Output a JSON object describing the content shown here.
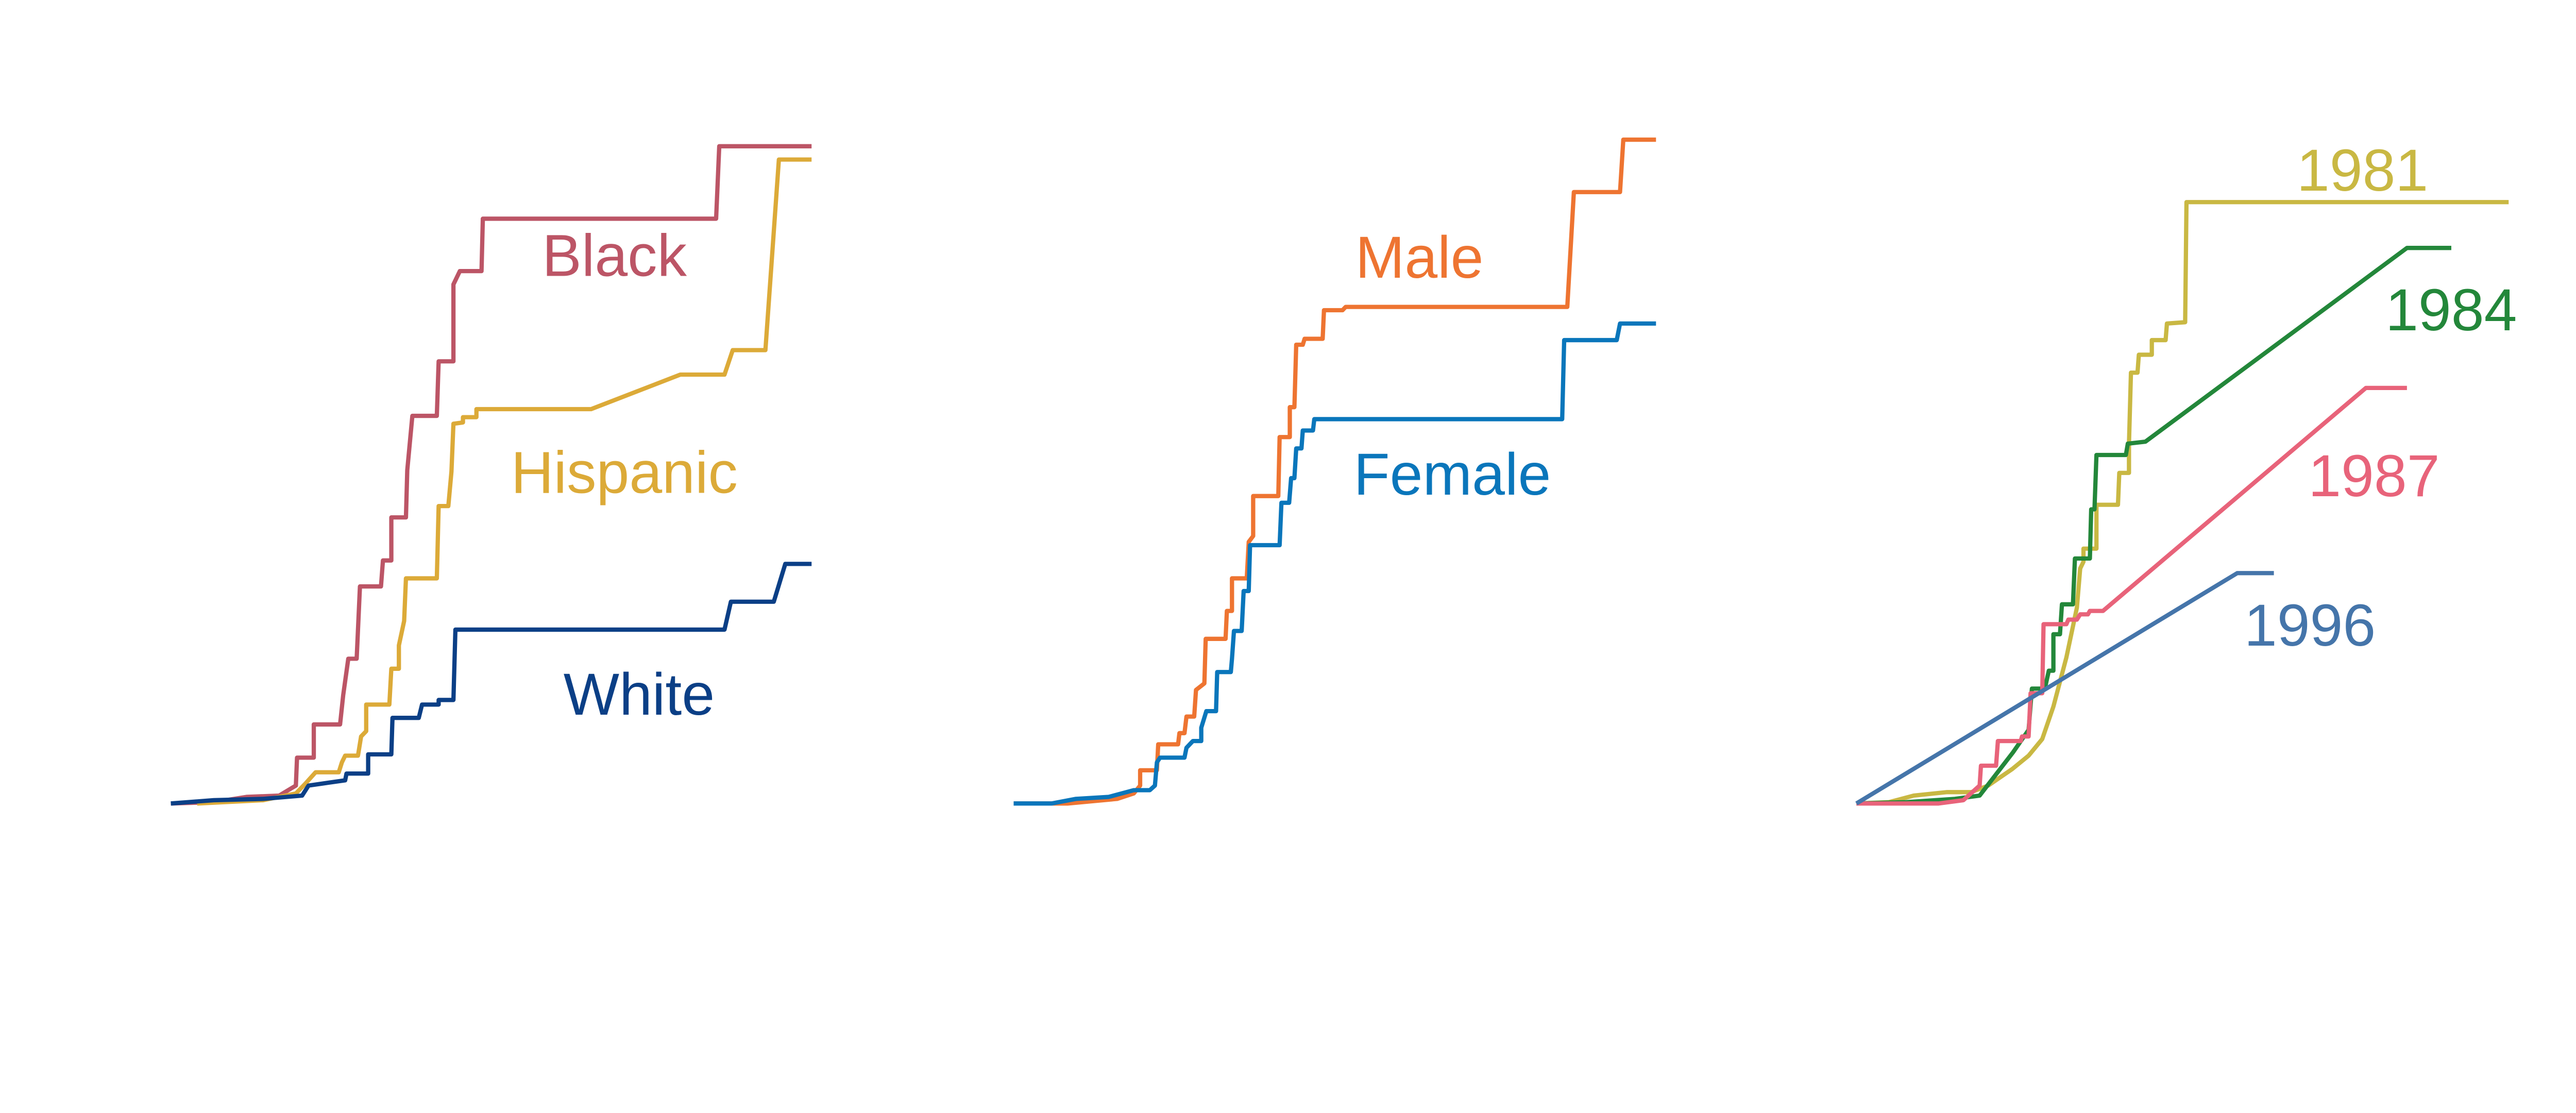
{
  "chart_data": [
    {
      "type": "line",
      "step": true,
      "title": "",
      "xlabel": "",
      "ylabel": "",
      "xlim": [
        0,
        100
      ],
      "ylim": [
        0,
        100
      ],
      "grid": false,
      "legend": "inline labels",
      "series": [
        {
          "name": "Black",
          "color": "#bc5566",
          "points": [
            [
              0,
              0
            ],
            [
              6.7,
              0.2
            ],
            [
              11.8,
              1.0
            ],
            [
              16.9,
              1.2
            ],
            [
              19.5,
              2.7
            ],
            [
              19.7,
              6.9
            ],
            [
              22.3,
              6.9
            ],
            [
              22.3,
              11.9
            ],
            [
              26.4,
              11.9
            ],
            [
              26.9,
              16.3
            ],
            [
              27.7,
              21.8
            ],
            [
              29.0,
              21.8
            ],
            [
              29.5,
              32.7
            ],
            [
              32.8,
              32.7
            ],
            [
              33.1,
              36.6
            ],
            [
              34.4,
              36.6
            ],
            [
              34.4,
              43.1
            ],
            [
              36.7,
              43.1
            ],
            [
              36.9,
              50.2
            ],
            [
              37.7,
              58.4
            ],
            [
              41.5,
              58.4
            ],
            [
              41.8,
              66.6
            ],
            [
              44.1,
              66.6
            ],
            [
              44.1,
              78.2
            ],
            [
              45.1,
              80.2
            ],
            [
              48.5,
              80.2
            ],
            [
              48.7,
              88.1
            ],
            [
              85.1,
              88.1
            ],
            [
              85.6,
              99.0
            ],
            [
              100,
              99.0
            ]
          ]
        },
        {
          "name": "Hispanic",
          "color": "#dcaa38",
          "points": [
            [
              4.1,
              0
            ],
            [
              14.4,
              0.5
            ],
            [
              19.5,
              1.5
            ],
            [
              21.0,
              3.0
            ],
            [
              22.6,
              4.7
            ],
            [
              26.2,
              4.7
            ],
            [
              26.7,
              6.2
            ],
            [
              27.2,
              7.2
            ],
            [
              29.2,
              7.2
            ],
            [
              29.7,
              10.1
            ],
            [
              30.5,
              10.9
            ],
            [
              30.5,
              14.9
            ],
            [
              34.1,
              14.9
            ],
            [
              34.4,
              20.3
            ],
            [
              35.6,
              20.3
            ],
            [
              35.6,
              23.8
            ],
            [
              36.4,
              27.5
            ],
            [
              36.7,
              33.9
            ],
            [
              41.5,
              33.9
            ],
            [
              41.8,
              44.8
            ],
            [
              43.3,
              44.8
            ],
            [
              43.8,
              50.0
            ],
            [
              44.1,
              57.2
            ],
            [
              45.6,
              57.4
            ],
            [
              45.6,
              58.2
            ],
            [
              47.7,
              58.2
            ],
            [
              47.7,
              59.4
            ],
            [
              65.6,
              59.4
            ],
            [
              79.5,
              64.6
            ],
            [
              86.4,
              64.6
            ],
            [
              87.7,
              68.3
            ],
            [
              92.8,
              68.3
            ],
            [
              94.9,
              97.0
            ],
            [
              100,
              97.0
            ]
          ]
        },
        {
          "name": "White",
          "color": "#0b3f86",
          "points": [
            [
              0,
              0
            ],
            [
              6.7,
              0.5
            ],
            [
              14.4,
              0.7
            ],
            [
              20.5,
              1.2
            ],
            [
              21.5,
              2.7
            ],
            [
              27.2,
              3.5
            ],
            [
              27.4,
              4.5
            ],
            [
              30.8,
              4.5
            ],
            [
              30.8,
              7.4
            ],
            [
              34.4,
              7.4
            ],
            [
              34.6,
              12.9
            ],
            [
              38.7,
              12.9
            ],
            [
              39.2,
              14.9
            ],
            [
              41.8,
              14.9
            ],
            [
              41.8,
              15.6
            ],
            [
              44.1,
              15.6
            ],
            [
              44.4,
              26.2
            ],
            [
              86.4,
              26.2
            ],
            [
              87.4,
              30.4
            ],
            [
              94.1,
              30.4
            ],
            [
              95.9,
              36.1
            ],
            [
              100,
              36.1
            ]
          ]
        }
      ]
    },
    {
      "type": "line",
      "step": true,
      "title": "",
      "xlabel": "",
      "ylabel": "",
      "xlim": [
        0,
        100
      ],
      "ylim": [
        0,
        100
      ],
      "grid": false,
      "legend": "inline labels",
      "series": [
        {
          "name": "Male",
          "color": "#ee7431",
          "points": [
            [
              0,
              0
            ],
            [
              8.4,
              0
            ],
            [
              16.1,
              0.7
            ],
            [
              18.7,
              1.5
            ],
            [
              19.7,
              2.7
            ],
            [
              19.7,
              5.0
            ],
            [
              22.3,
              5.0
            ],
            [
              22.5,
              8.9
            ],
            [
              25.6,
              8.9
            ],
            [
              25.8,
              10.6
            ],
            [
              26.6,
              10.6
            ],
            [
              26.9,
              13.1
            ],
            [
              28.1,
              13.1
            ],
            [
              28.4,
              17.1
            ],
            [
              29.7,
              18.1
            ],
            [
              29.9,
              24.8
            ],
            [
              33.0,
              24.8
            ],
            [
              33.2,
              29.0
            ],
            [
              34.0,
              29.0
            ],
            [
              34.0,
              33.9
            ],
            [
              36.3,
              33.9
            ],
            [
              36.6,
              39.4
            ],
            [
              37.3,
              40.3
            ],
            [
              37.3,
              46.3
            ],
            [
              41.2,
              46.3
            ],
            [
              41.4,
              55.2
            ],
            [
              43.0,
              55.2
            ],
            [
              43.0,
              59.7
            ],
            [
              43.7,
              59.7
            ],
            [
              44.0,
              69.1
            ],
            [
              45.0,
              69.1
            ],
            [
              45.3,
              70.0
            ],
            [
              48.1,
              70.0
            ],
            [
              48.3,
              74.3
            ],
            [
              51.2,
              74.3
            ],
            [
              51.7,
              74.8
            ],
            [
              86.2,
              74.8
            ],
            [
              87.2,
              92.1
            ],
            [
              94.4,
              92.1
            ],
            [
              94.9,
              100
            ],
            [
              100,
              100
            ]
          ]
        },
        {
          "name": "Female",
          "color": "#0a76bb",
          "points": [
            [
              0,
              0
            ],
            [
              5.9,
              0
            ],
            [
              9.7,
              0.7
            ],
            [
              14.8,
              1.0
            ],
            [
              18.7,
              2.0
            ],
            [
              21.2,
              2.0
            ],
            [
              22.0,
              2.7
            ],
            [
              22.3,
              6.2
            ],
            [
              22.8,
              6.9
            ],
            [
              26.6,
              6.9
            ],
            [
              26.9,
              8.4
            ],
            [
              27.9,
              9.4
            ],
            [
              29.2,
              9.4
            ],
            [
              29.2,
              11.4
            ],
            [
              30.0,
              13.9
            ],
            [
              31.5,
              13.9
            ],
            [
              31.7,
              19.8
            ],
            [
              33.8,
              19.8
            ],
            [
              34.0,
              21.8
            ],
            [
              34.3,
              26.0
            ],
            [
              35.5,
              26.0
            ],
            [
              35.8,
              32.0
            ],
            [
              36.6,
              32.0
            ],
            [
              36.8,
              38.9
            ],
            [
              41.4,
              38.9
            ],
            [
              41.7,
              45.3
            ],
            [
              42.9,
              45.3
            ],
            [
              43.2,
              49.0
            ],
            [
              43.7,
              49.0
            ],
            [
              44.0,
              53.5
            ],
            [
              44.8,
              53.5
            ],
            [
              45.0,
              56.2
            ],
            [
              46.6,
              56.2
            ],
            [
              46.8,
              57.9
            ],
            [
              85.4,
              57.9
            ],
            [
              85.7,
              69.8
            ],
            [
              93.9,
              69.8
            ],
            [
              94.4,
              72.3
            ],
            [
              100,
              72.3
            ]
          ]
        }
      ]
    },
    {
      "type": "line",
      "step": true,
      "title": "",
      "xlabel": "",
      "ylabel": "",
      "xlim": [
        0,
        100
      ],
      "ylim": [
        0,
        100
      ],
      "grid": false,
      "legend": "inline labels",
      "series": [
        {
          "name": "1981",
          "color": "#c9b843",
          "points": [
            [
              0,
              0
            ],
            [
              5.0,
              0.2
            ],
            [
              8.8,
              1.2
            ],
            [
              13.9,
              1.7
            ],
            [
              17.6,
              1.7
            ],
            [
              20.2,
              2.7
            ],
            [
              23.9,
              5.2
            ],
            [
              26.4,
              7.2
            ],
            [
              28.5,
              9.7
            ],
            [
              30.2,
              14.6
            ],
            [
              32.2,
              22.0
            ],
            [
              33.8,
              29.5
            ],
            [
              34.3,
              35.4
            ],
            [
              34.8,
              36.4
            ],
            [
              34.8,
              38.4
            ],
            [
              36.8,
              38.4
            ],
            [
              36.8,
              45.0
            ],
            [
              40.1,
              45.0
            ],
            [
              40.3,
              49.8
            ],
            [
              41.8,
              49.8
            ],
            [
              41.8,
              54.2
            ],
            [
              42.1,
              64.9
            ],
            [
              43.1,
              64.9
            ],
            [
              43.3,
              67.6
            ],
            [
              45.3,
              67.6
            ],
            [
              45.3,
              69.8
            ],
            [
              47.4,
              69.8
            ],
            [
              47.6,
              72.3
            ],
            [
              50.4,
              72.5
            ],
            [
              50.6,
              90.6
            ],
            [
              100,
              90.6
            ]
          ]
        },
        {
          "name": "1984",
          "color": "#23873a",
          "points": [
            [
              0,
              0
            ],
            [
              7.6,
              0.2
            ],
            [
              15.1,
              0.7
            ],
            [
              18.9,
              1.2
            ],
            [
              24.0,
              7.7
            ],
            [
              26.4,
              11.1
            ],
            [
              26.9,
              17.3
            ],
            [
              28.9,
              17.3
            ],
            [
              29.5,
              20.0
            ],
            [
              30.2,
              20.0
            ],
            [
              30.2,
              25.5
            ],
            [
              31.2,
              25.5
            ],
            [
              31.5,
              30.0
            ],
            [
              33.2,
              30.0
            ],
            [
              33.5,
              36.9
            ],
            [
              35.8,
              36.9
            ],
            [
              36.0,
              44.3
            ],
            [
              36.5,
              44.3
            ],
            [
              36.8,
              52.5
            ],
            [
              41.3,
              52.5
            ],
            [
              41.6,
              54.2
            ],
            [
              44.3,
              54.5
            ],
            [
              84.4,
              83.7
            ],
            [
              91.2,
              83.7
            ]
          ]
        },
        {
          "name": "1987",
          "color": "#e8637a",
          "points": [
            [
              0,
              0
            ],
            [
              12.6,
              0
            ],
            [
              16.4,
              0.5
            ],
            [
              18.9,
              2.7
            ],
            [
              19.1,
              5.7
            ],
            [
              21.4,
              5.7
            ],
            [
              21.7,
              9.4
            ],
            [
              25.2,
              9.4
            ],
            [
              25.4,
              10.1
            ],
            [
              26.4,
              10.1
            ],
            [
              26.7,
              16.6
            ],
            [
              28.5,
              16.6
            ],
            [
              28.7,
              27.0
            ],
            [
              32.2,
              27.0
            ],
            [
              32.5,
              27.7
            ],
            [
              33.8,
              27.7
            ],
            [
              34.3,
              28.5
            ],
            [
              35.5,
              28.5
            ],
            [
              35.8,
              29.0
            ],
            [
              37.8,
              29.0
            ],
            [
              78.1,
              62.6
            ],
            [
              84.4,
              62.6
            ]
          ]
        },
        {
          "name": "1996",
          "color": "#4575aa",
          "points": [
            [
              0,
              0
            ],
            [
              58.4,
              34.7
            ],
            [
              64.0,
              34.7
            ]
          ]
        }
      ]
    }
  ]
}
